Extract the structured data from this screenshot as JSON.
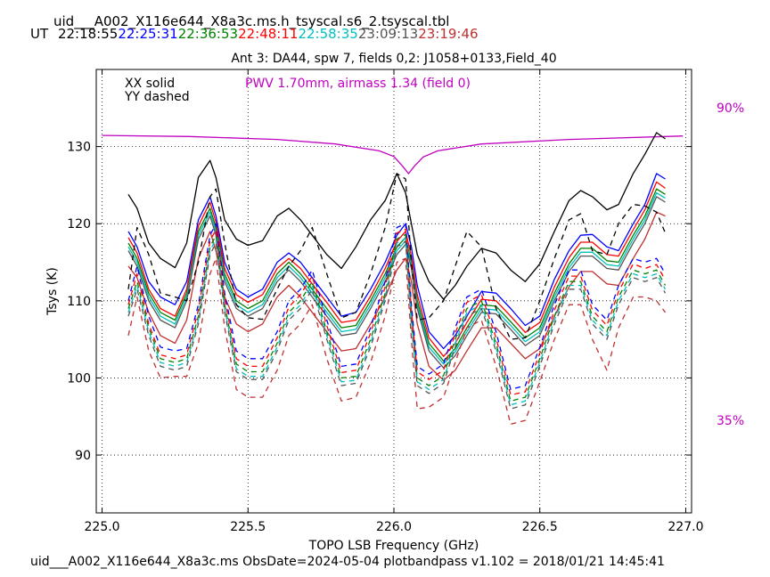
{
  "header": {
    "filename": "uid___A002_X116e644_X8a3c.ms.h_tsyscal.s6_2.tsyscal.tbl",
    "ut_label": "UT",
    "times": [
      {
        "text": "22:18:55",
        "color": "#000000"
      },
      {
        "text": "22:25:31",
        "color": "#0000ff"
      },
      {
        "text": "22:36:53",
        "color": "#008000"
      },
      {
        "text": "22:48:11",
        "color": "#ff0000"
      },
      {
        "text": "22:58:35",
        "color": "#00bfbf"
      },
      {
        "text": "23:09:13",
        "color": "#555555"
      },
      {
        "text": "23:19:46",
        "color": "#c03030"
      }
    ]
  },
  "footer": "uid___A002_X116e644_X8a3c.ms  ObsDate=2024-05-04   plotbandpass v1.102 = 2018/01/21 14:45:41",
  "chart_data": {
    "type": "line",
    "title": "Ant 3: DA44,  spw 7,  fields 0,2: J1058+0133,Field_40",
    "xlabel": "TOPO LSB Frequency (GHz)",
    "ylabel": "Tsys (K)",
    "xlim": [
      224.98,
      227.02
    ],
    "ylim": [
      82.5,
      140
    ],
    "xticks": [
      225.0,
      225.5,
      226.0,
      226.5,
      227.0
    ],
    "xtick_labels": [
      "225.0",
      "225.5",
      "226.0",
      "226.5",
      "227.0"
    ],
    "yticks": [
      90,
      100,
      110,
      120,
      130
    ],
    "ytick_labels": [
      "90",
      "100",
      "110",
      "120",
      "130"
    ],
    "grid": true,
    "legend_solid": "XX solid",
    "legend_dashed": "YY dashed",
    "pwv_label": "PWV 1.70mm, airmass 1.34 (field 0)",
    "pwv_color": "#c000c0",
    "right_labels": [
      "90%",
      "35%"
    ],
    "x": [
      225.09,
      225.12,
      225.16,
      225.2,
      225.25,
      225.29,
      225.33,
      225.37,
      225.39,
      225.42,
      225.46,
      225.5,
      225.55,
      225.6,
      225.64,
      225.68,
      225.72,
      225.77,
      225.82,
      225.87,
      225.92,
      225.97,
      226.01,
      226.04,
      226.06,
      226.08,
      226.12,
      226.17,
      226.21,
      226.25,
      226.3,
      226.35,
      226.4,
      226.45,
      226.5,
      226.55,
      226.6,
      226.64,
      226.68,
      226.73,
      226.77,
      226.82,
      226.86,
      226.9,
      226.93
    ],
    "series": [
      {
        "name": "XX 22:18:55",
        "color": "#000000",
        "dash": false,
        "values": [
          123.8,
          122,
          117.5,
          115.5,
          114.3,
          117.5,
          126,
          128.2,
          126,
          120.5,
          118,
          117.2,
          117.8,
          121,
          122,
          120.5,
          118.5,
          116,
          114.2,
          117,
          120.5,
          123,
          126.5,
          124,
          120,
          116,
          112.5,
          110.2,
          112,
          114.5,
          116.8,
          116.2,
          114,
          112.5,
          114.8,
          119,
          123,
          124.3,
          123.5,
          121.8,
          122.5,
          126.5,
          129,
          131.8,
          131
        ]
      },
      {
        "name": "XX 22:25:31",
        "color": "#0000ff",
        "dash": false,
        "values": [
          119,
          117,
          112.5,
          110.5,
          109.5,
          112.5,
          120.5,
          123.5,
          121,
          115,
          111.5,
          110.5,
          111.5,
          115,
          116.2,
          115,
          113,
          110.5,
          108,
          108.5,
          111.5,
          115,
          118.5,
          120,
          117,
          112,
          106,
          103.8,
          105.5,
          108,
          111.2,
          111,
          109,
          106.8,
          108,
          112.8,
          116.5,
          118.5,
          118.6,
          117,
          116.5,
          120,
          122.5,
          126.5,
          125.8
        ]
      },
      {
        "name": "XX 22:36:53",
        "color": "#008000",
        "dash": false,
        "values": [
          117.5,
          115.5,
          111,
          108.5,
          107.5,
          111,
          119,
          122,
          119.5,
          113.5,
          110,
          109,
          110,
          113.5,
          115,
          113.5,
          111.5,
          109,
          106.5,
          106.8,
          110,
          113.5,
          117,
          118.2,
          115,
          110,
          104.5,
          102.2,
          103.8,
          106.5,
          109.5,
          109.3,
          107.3,
          105.2,
          106.5,
          111,
          114.8,
          116.8,
          116.8,
          115.2,
          115,
          118.5,
          121,
          124.5,
          123.8
        ]
      },
      {
        "name": "XX 22:48:11",
        "color": "#ff0000",
        "dash": false,
        "values": [
          118.2,
          116.2,
          111.5,
          109,
          108,
          111.5,
          119.7,
          122.8,
          120.2,
          114.2,
          110.8,
          109.8,
          110.8,
          114.2,
          115.5,
          114.2,
          112.2,
          109.8,
          107.2,
          107.5,
          110.6,
          114.2,
          117.7,
          119,
          115.8,
          110.8,
          105.2,
          102.8,
          104.5,
          107.2,
          110.2,
          110,
          108,
          105.9,
          107.2,
          111.8,
          115.6,
          117.6,
          117.6,
          116,
          115.8,
          119.2,
          121.8,
          125.4,
          124.6
        ]
      },
      {
        "name": "XX 22:58:35",
        "color": "#00bfbf",
        "dash": false,
        "values": [
          117,
          115,
          110.5,
          108,
          107,
          110.5,
          118.5,
          121.5,
          119,
          113,
          109.5,
          108.5,
          109.5,
          113,
          114.5,
          113,
          111,
          108.5,
          106,
          106.3,
          109.5,
          113,
          116.5,
          117.8,
          114.6,
          109.5,
          104,
          101.8,
          103.4,
          106,
          109,
          108.8,
          106.8,
          104.7,
          106,
          110.5,
          114.3,
          116.3,
          116.3,
          114.7,
          114.5,
          118,
          120.5,
          124,
          123.3
        ]
      },
      {
        "name": "XX 23:09:13",
        "color": "#555555",
        "dash": false,
        "values": [
          116.5,
          114.5,
          110,
          107.5,
          106.5,
          110,
          118,
          121,
          118.5,
          112.5,
          109,
          108,
          109,
          112.5,
          114,
          112.5,
          110.5,
          108,
          105.5,
          105.8,
          109,
          112.5,
          116,
          117.3,
          114.2,
          109,
          103.5,
          101.3,
          102.9,
          105.5,
          108.5,
          108.3,
          106.3,
          104.2,
          105.5,
          110,
          113.8,
          115.8,
          115.8,
          114.2,
          114,
          117.5,
          120,
          123.5,
          122.8
        ]
      },
      {
        "name": "XX 23:19:46",
        "color": "#c03030",
        "dash": false,
        "values": [
          114.5,
          113,
          108.5,
          105.5,
          104.5,
          107.5,
          115.5,
          119,
          116.5,
          110.5,
          107,
          106,
          107,
          110.5,
          112,
          110.5,
          108.5,
          106,
          103.5,
          103.8,
          107,
          110.5,
          114,
          115.5,
          112.5,
          107,
          101.5,
          99.7,
          101,
          103.5,
          106.5,
          106.5,
          104.5,
          102.5,
          103.8,
          108,
          111.8,
          113.8,
          113.8,
          112.2,
          112,
          115.5,
          118,
          121.5,
          121
        ]
      },
      {
        "name": "YY 22:18:55",
        "color": "#000000",
        "dash": true,
        "values": [
          111.5,
          119.5,
          116,
          111,
          110.5,
          110,
          115,
          123.5,
          124.5,
          117.5,
          109.5,
          107.8,
          107.6,
          111.5,
          114.5,
          116.5,
          119.5,
          113.5,
          107.8,
          108.5,
          113.5,
          119.5,
          126.5,
          125.8,
          115,
          107.5,
          107.8,
          110,
          114.5,
          119,
          117,
          109,
          105,
          105.2,
          110,
          115.5,
          120.5,
          121.3,
          116.5,
          116,
          120,
          122.5,
          122.3,
          121.5,
          118.8
        ]
      },
      {
        "name": "YY 22:25:31",
        "color": "#0000ff",
        "dash": true,
        "values": [
          110,
          114.5,
          108,
          104,
          103.5,
          103.8,
          109.5,
          118.5,
          120,
          111,
          103.5,
          102.5,
          102.5,
          106,
          110,
          111.5,
          114,
          107.5,
          101.5,
          101.8,
          106.5,
          112.5,
          119.5,
          120,
          109.5,
          101.5,
          100.5,
          101.8,
          106.5,
          110.5,
          111.5,
          106,
          98.5,
          99,
          104,
          109.5,
          114,
          114,
          109.5,
          107.5,
          112,
          115.5,
          115,
          115.5,
          113.5
        ]
      },
      {
        "name": "YY 22:36:53",
        "color": "#008000",
        "dash": true,
        "values": [
          109,
          112.5,
          106.5,
          102.5,
          102,
          102.5,
          108,
          117,
          118.5,
          109.5,
          101.8,
          100.8,
          100.8,
          104.5,
          108.5,
          110,
          112.5,
          106,
          100,
          100.2,
          105,
          111,
          118,
          118.6,
          108,
          100,
          99,
          100.3,
          105,
          109,
          110,
          104.5,
          97,
          97.5,
          102.5,
          108,
          112.5,
          112.5,
          108,
          106,
          110.5,
          114,
          113.5,
          114,
          112
        ]
      },
      {
        "name": "YY 22:48:11",
        "color": "#ff0000",
        "dash": true,
        "values": [
          109.5,
          113.5,
          107,
          103,
          102.5,
          103,
          108.8,
          117.8,
          119.2,
          110.2,
          102.5,
          101.5,
          101.5,
          105.2,
          109.2,
          110.8,
          113.2,
          106.8,
          100.7,
          101,
          105.8,
          111.8,
          118.8,
          119.3,
          108.8,
          100.8,
          99.8,
          101,
          105.8,
          109.8,
          110.8,
          105.2,
          97.8,
          98.2,
          103.2,
          108.8,
          113.2,
          113.2,
          108.8,
          106.8,
          111.2,
          114.8,
          114.2,
          114.7,
          112.7
        ]
      },
      {
        "name": "YY 22:58:35",
        "color": "#00bfbf",
        "dash": true,
        "values": [
          108.5,
          112,
          106,
          102,
          101.5,
          102,
          107.5,
          116.5,
          118,
          109,
          101.2,
          100.2,
          100.2,
          104,
          108,
          109.5,
          112,
          105.5,
          99.5,
          99.7,
          104.5,
          110.5,
          117.5,
          118.1,
          107.5,
          99.5,
          98.5,
          99.8,
          104.5,
          108.5,
          109.5,
          104,
          96.5,
          97,
          102,
          107.5,
          112,
          112,
          107.5,
          105.5,
          110,
          113.5,
          113,
          113.5,
          111.5
        ]
      },
      {
        "name": "YY 23:09:13",
        "color": "#555555",
        "dash": true,
        "values": [
          108,
          111.5,
          105.5,
          101.5,
          101,
          101.5,
          107,
          116,
          117.5,
          108.5,
          100.8,
          99.8,
          99.8,
          103.5,
          107.5,
          109,
          111.5,
          105,
          99,
          99.3,
          104,
          110,
          117,
          117.7,
          107,
          99,
          98,
          99.3,
          104,
          108,
          109,
          103.5,
          96,
          96.5,
          101.5,
          107,
          111.5,
          111.5,
          107,
          105,
          109.5,
          113,
          112.5,
          113,
          111
        ]
      },
      {
        "name": "YY 23:19:46",
        "color": "#c03030",
        "dash": true,
        "values": [
          105.5,
          110.5,
          103.5,
          100,
          100.2,
          100.2,
          104.5,
          113.5,
          115.5,
          106.5,
          98.5,
          97.5,
          97.5,
          101,
          105.5,
          107,
          109.5,
          102.5,
          97,
          97.5,
          102,
          108,
          115,
          115.5,
          105,
          96,
          96.2,
          97.5,
          102,
          106.5,
          107.5,
          101.5,
          94,
          94.5,
          99.5,
          105,
          109.5,
          109.5,
          105,
          101,
          106.5,
          110.5,
          110.5,
          110,
          108.5
        ]
      }
    ],
    "pwv_curve": {
      "x": [
        225.0,
        225.3,
        225.6,
        225.8,
        225.95,
        226.0,
        226.03,
        226.05,
        226.07,
        226.1,
        226.15,
        226.3,
        226.6,
        226.99
      ],
      "pct": [
        85.2,
        85.0,
        84.5,
        83.7,
        82.5,
        81.5,
        79.8,
        78.5,
        79.8,
        81.4,
        82.5,
        83.7,
        84.5,
        85.1
      ]
    },
    "right_axis": {
      "pct_min": 35,
      "pct_max": 90,
      "y_at_min": 94.3,
      "y_at_max": 135
    }
  }
}
